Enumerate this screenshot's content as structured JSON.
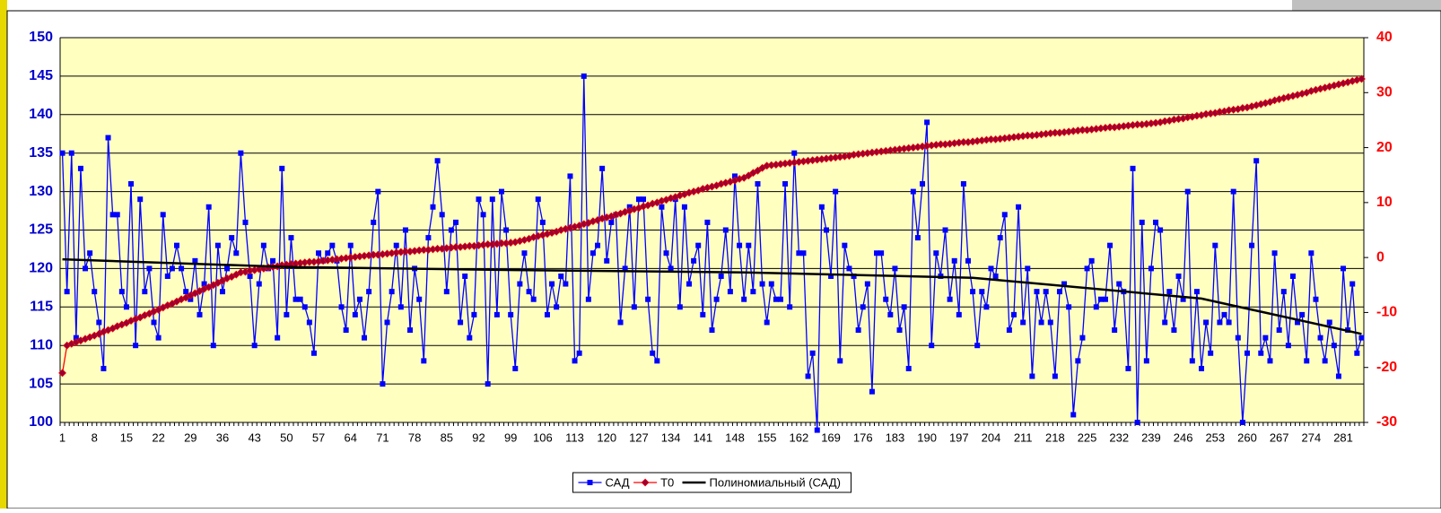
{
  "chart_data": {
    "type": "line",
    "categories": [
      1,
      null,
      null,
      null,
      null,
      null,
      null,
      8,
      null,
      null,
      null,
      null,
      null,
      null,
      15,
      null,
      null,
      null,
      null,
      null,
      null,
      22,
      null,
      null,
      null,
      null,
      null,
      null,
      29,
      null,
      null,
      null,
      null,
      null,
      null,
      36,
      null,
      null,
      null,
      null,
      null,
      null,
      43,
      null,
      null,
      null,
      null,
      null,
      null,
      50,
      null,
      null,
      null,
      null,
      null,
      null,
      57,
      null,
      null,
      null,
      null,
      null,
      null,
      64,
      null,
      null,
      null,
      null,
      null,
      null,
      71,
      null,
      null,
      null,
      null,
      null,
      null,
      78,
      null,
      null,
      null,
      null,
      null,
      null,
      85,
      null,
      null,
      null,
      null,
      null,
      null,
      92,
      null,
      null,
      null,
      null,
      null,
      null,
      99,
      null,
      null,
      null,
      null,
      null,
      null,
      106,
      null,
      null,
      null,
      null,
      null,
      null,
      113,
      null,
      null,
      null,
      null,
      null,
      null,
      120,
      null,
      null,
      null,
      null,
      null,
      null,
      127,
      null,
      null,
      null,
      null,
      null,
      null,
      134,
      null,
      null,
      null,
      null,
      null,
      null,
      141,
      null,
      null,
      null,
      null,
      null,
      null,
      148,
      null,
      null,
      null,
      null,
      null,
      null,
      155,
      null,
      null,
      null,
      null,
      null,
      null,
      162,
      null,
      null,
      null,
      null,
      null,
      null,
      169,
      null,
      null,
      null,
      null,
      null,
      null,
      176,
      null,
      null,
      null,
      null,
      null,
      null,
      183,
      null,
      null,
      null,
      null,
      null,
      null,
      190,
      null,
      null,
      null,
      null,
      null,
      null,
      197,
      null,
      null,
      null,
      null,
      null,
      null,
      204,
      null,
      null,
      null,
      null,
      null,
      null,
      211,
      null,
      null,
      null,
      null,
      null,
      null,
      218,
      null,
      null,
      null,
      null,
      null,
      null,
      225,
      null,
      null,
      null,
      null,
      null,
      null,
      232,
      null,
      null,
      null,
      null,
      null,
      null,
      239,
      null,
      null,
      null,
      null,
      null,
      null,
      246,
      null,
      null,
      null,
      null,
      null,
      null,
      253,
      null,
      null,
      null,
      null,
      null,
      null,
      260,
      null,
      null,
      null,
      null,
      null,
      null,
      267,
      null,
      null,
      null,
      null,
      null,
      null,
      274,
      null,
      null,
      null,
      null,
      null,
      null,
      281,
      null,
      null,
      null,
      null
    ],
    "series": [
      {
        "name": "САД",
        "color": "#0000ff",
        "marker": "square",
        "values": [
          135,
          117,
          135,
          111,
          133,
          120,
          122,
          117,
          113,
          107,
          137,
          127,
          127,
          117,
          115,
          131,
          110,
          129,
          117,
          120,
          113,
          111,
          127,
          119,
          120,
          123,
          120,
          117,
          116,
          121,
          114,
          118,
          128,
          110,
          123,
          117,
          120,
          124,
          122,
          135,
          126,
          119,
          110,
          118,
          123,
          120,
          121,
          111,
          133,
          114,
          124,
          116,
          116,
          115,
          113,
          109,
          122,
          121,
          122,
          123,
          121,
          115,
          112,
          123,
          114,
          116,
          111,
          117,
          126,
          130,
          105,
          113,
          117,
          123,
          115,
          125,
          112,
          120,
          116,
          108,
          124,
          128,
          134,
          127,
          117,
          125,
          126,
          113,
          119,
          111,
          114,
          129,
          127,
          105,
          129,
          114,
          130,
          125,
          114,
          107,
          118,
          122,
          117,
          116,
          129,
          126,
          114,
          118,
          115,
          119,
          118,
          132,
          108,
          109,
          145,
          116,
          122,
          123,
          133,
          121,
          126,
          127,
          113,
          120,
          128,
          115,
          129,
          129,
          116,
          109,
          108,
          128,
          122,
          120,
          129,
          115,
          128,
          118,
          121,
          123,
          114,
          126,
          112,
          116,
          119,
          125,
          117,
          132,
          123,
          116,
          123,
          117,
          131,
          118,
          113,
          118,
          116,
          116,
          131,
          115,
          135,
          122,
          122,
          106,
          109,
          99,
          128,
          125,
          119,
          130,
          108,
          123,
          120,
          119,
          112,
          115,
          118,
          104,
          122,
          122,
          116,
          114,
          120,
          112,
          115,
          107,
          130,
          124,
          131,
          139,
          110,
          122,
          119,
          125,
          116,
          121,
          114,
          131,
          121,
          117,
          110,
          117,
          115,
          120,
          119,
          124,
          127,
          112,
          114,
          128,
          113,
          120,
          106,
          117,
          113,
          117,
          113,
          106,
          117,
          118,
          115,
          101,
          108,
          111,
          120,
          121,
          115,
          116,
          116,
          123,
          112,
          118,
          117,
          107,
          133,
          100,
          126,
          108,
          120,
          126,
          125,
          113,
          117,
          112,
          119,
          116,
          130,
          108,
          117,
          107,
          113,
          109,
          123,
          113,
          114,
          113,
          130,
          111,
          100,
          109,
          123,
          134,
          109,
          111,
          108,
          122,
          112,
          117,
          110,
          119,
          113,
          114,
          108,
          122,
          116,
          111,
          108,
          113,
          110,
          106,
          120,
          112,
          118,
          109,
          111
        ]
      },
      {
        "name": "T0",
        "color": "#ff0000",
        "marker_color": "#990033",
        "marker": "diamond",
        "axis": "y2",
        "values": [
          -21,
          -16,
          -15.7,
          -15.4,
          -15.1,
          -14.8,
          -14.5,
          -14.2,
          -13.9,
          -13.5,
          -13.2,
          -12.9,
          -12.5,
          -12.2,
          -11.9,
          -11.5,
          -11.2,
          -10.9,
          -10.5,
          -10.2,
          -9.8,
          -9.5,
          -9.1,
          -8.7,
          -8.4,
          -8,
          -7.6,
          -7.3,
          -6.9,
          -6.5,
          -6.1,
          -5.7,
          -5.4,
          -5,
          -4.6,
          -4.2,
          -3.8,
          -3.5,
          -3.1,
          -2.7,
          -2.6,
          -2.4,
          -2.3,
          -2.1,
          -2,
          -1.8,
          -1.7,
          -1.6,
          -1.4,
          -1.3,
          -1.2,
          -1.1,
          -1,
          -0.9,
          -0.8,
          -0.8,
          -0.7,
          -0.6,
          -0.5,
          -0.4,
          -0.3,
          -0.2,
          -0.1,
          0,
          0.1,
          0.2,
          0.3,
          0.4,
          0.5,
          0.5,
          0.6,
          0.7,
          0.8,
          0.9,
          1,
          1.1,
          1.1,
          1.2,
          1.3,
          1.4,
          1.4,
          1.5,
          1.6,
          1.6,
          1.7,
          1.8,
          1.9,
          1.9,
          2,
          2.1,
          2.1,
          2.2,
          2.3,
          2.4,
          2.4,
          2.5,
          2.6,
          2.6,
          2.7,
          2.8,
          3,
          3.2,
          3.4,
          3.7,
          3.9,
          4.1,
          4.3,
          4.5,
          4.7,
          5,
          5.2,
          5.4,
          5.6,
          5.8,
          6.1,
          6.3,
          6.6,
          6.8,
          7.1,
          7.3,
          7.5,
          7.8,
          8,
          8.3,
          8.5,
          8.8,
          9,
          9.3,
          9.5,
          9.8,
          10,
          10.3,
          10.5,
          10.8,
          11,
          11.3,
          11.5,
          11.8,
          12,
          12.2,
          12.5,
          12.7,
          12.9,
          13.1,
          13.4,
          13.6,
          13.8,
          14,
          14.3,
          14.5,
          14.9,
          15.4,
          15.8,
          16.3,
          16.7,
          16.8,
          16.9,
          17,
          17.1,
          17.2,
          17.3,
          17.4,
          17.5,
          17.6,
          17.7,
          17.8,
          17.9,
          18,
          18.1,
          18.2,
          18.3,
          18.4,
          18.5,
          18.7,
          18.8,
          18.9,
          19,
          19.1,
          19.2,
          19.3,
          19.4,
          19.5,
          19.6,
          19.7,
          19.8,
          19.9,
          20,
          20.1,
          20.2,
          20.3,
          20.4,
          20.5,
          20.6,
          20.6,
          20.7,
          20.8,
          20.9,
          21,
          21,
          21.1,
          21.2,
          21.3,
          21.4,
          21.5,
          21.5,
          21.6,
          21.7,
          21.8,
          21.9,
          22,
          22.1,
          22.2,
          22.2,
          22.3,
          22.4,
          22.5,
          22.6,
          22.7,
          22.7,
          22.8,
          22.9,
          23,
          23.1,
          23.2,
          23.2,
          23.3,
          23.4,
          23.5,
          23.6,
          23.7,
          23.7,
          23.8,
          23.9,
          24,
          24.1,
          24.2,
          24.2,
          24.3,
          24.4,
          24.5,
          24.6,
          24.8,
          24.9,
          25.1,
          25.2,
          25.3,
          25.5,
          25.6,
          25.8,
          25.9,
          26.1,
          26.2,
          26.3,
          26.5,
          26.6,
          26.8,
          26.9,
          27,
          27.2,
          27.3,
          27.5,
          27.7,
          27.9,
          28.1,
          28.3,
          28.6,
          28.8,
          29,
          29.2,
          29.4,
          29.6,
          29.8,
          30,
          30.3,
          30.5,
          30.7,
          30.9,
          31.1,
          31.3,
          31.5,
          31.7,
          31.9,
          32.1,
          32.3,
          32.5
        ]
      },
      {
        "name": "Полиномиальный (САД)",
        "color": "#000000",
        "x": [
          1,
          50,
          100,
          150,
          200,
          250,
          285
        ],
        "values": [
          121.2,
          120.2,
          119.8,
          119.5,
          118.8,
          116.1,
          111.5
        ]
      }
    ],
    "ylim": [
      100,
      150
    ],
    "yticks": [
      100,
      105,
      110,
      115,
      120,
      125,
      130,
      135,
      140,
      145,
      150
    ],
    "y2lim": [
      -30,
      40
    ],
    "y2ticks": [
      -30,
      -20,
      -10,
      0,
      10,
      20,
      30,
      40
    ],
    "grid": true,
    "legend": "bottom",
    "background": "#ffffc0"
  }
}
